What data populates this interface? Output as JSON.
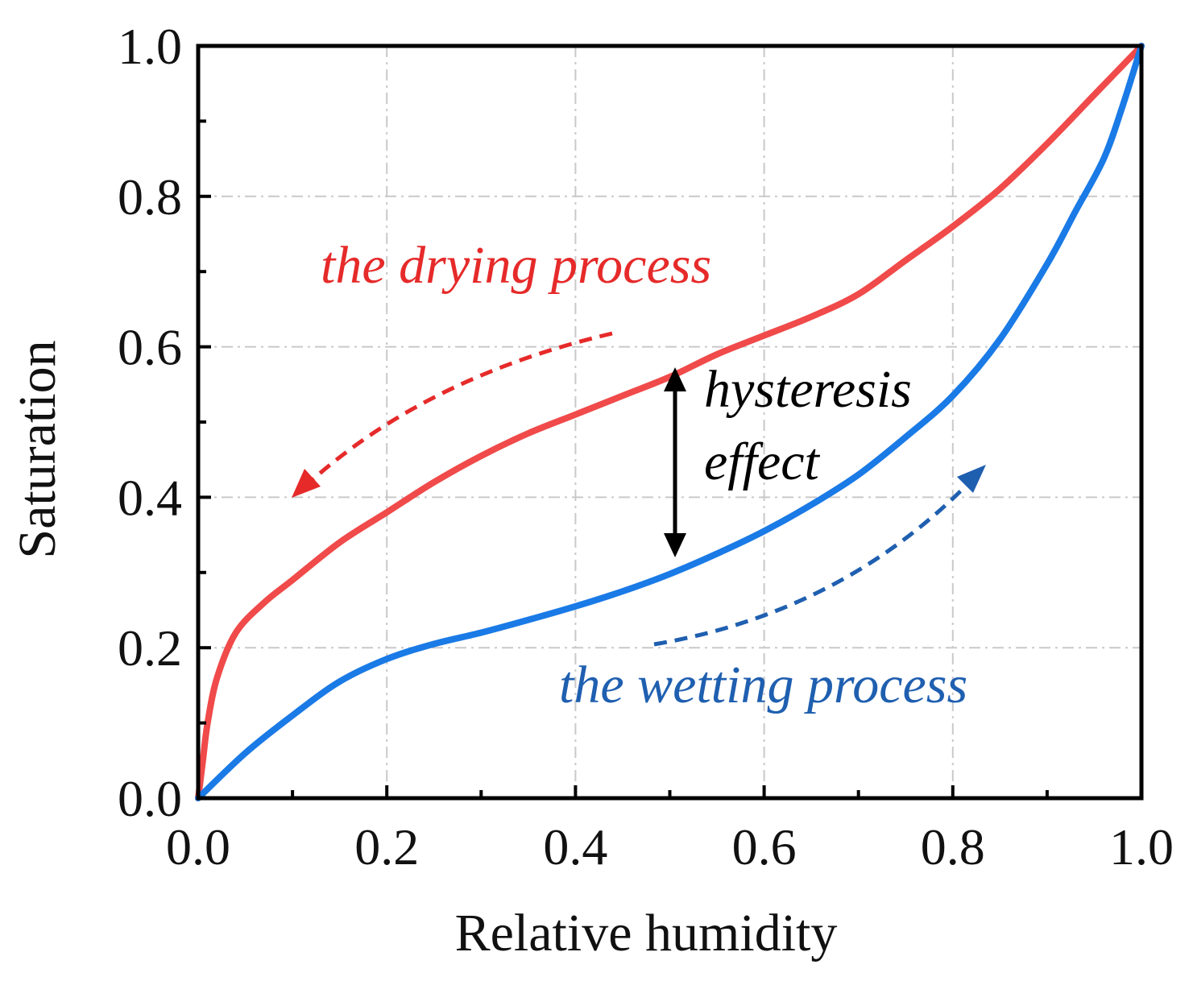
{
  "chart_data": {
    "type": "line",
    "title": "",
    "xlabel": "Relative humidity",
    "ylabel": "Saturation",
    "xlim": [
      0.0,
      1.0
    ],
    "ylim": [
      0.0,
      1.0
    ],
    "xticks": [
      "0.0",
      "0.2",
      "0.4",
      "0.6",
      "0.8",
      "1.0"
    ],
    "yticks": [
      "0.0",
      "0.2",
      "0.4",
      "0.6",
      "0.8",
      "1.0"
    ],
    "grid": true,
    "series": [
      {
        "name": "the drying process",
        "color": "#f04a4a",
        "x": [
          0.0,
          0.005,
          0.01,
          0.02,
          0.04,
          0.07,
          0.1,
          0.15,
          0.2,
          0.25,
          0.3,
          0.35,
          0.4,
          0.45,
          0.5,
          0.55,
          0.6,
          0.65,
          0.7,
          0.75,
          0.8,
          0.85,
          0.9,
          0.95,
          1.0
        ],
        "y": [
          0.0,
          0.05,
          0.1,
          0.16,
          0.22,
          0.26,
          0.29,
          0.34,
          0.38,
          0.42,
          0.455,
          0.485,
          0.51,
          0.535,
          0.56,
          0.59,
          0.615,
          0.64,
          0.67,
          0.715,
          0.76,
          0.81,
          0.87,
          0.935,
          1.0
        ]
      },
      {
        "name": "the wetting process",
        "color": "#1a7ae6",
        "x": [
          0.0,
          0.05,
          0.1,
          0.15,
          0.2,
          0.25,
          0.3,
          0.35,
          0.4,
          0.45,
          0.5,
          0.55,
          0.6,
          0.65,
          0.7,
          0.75,
          0.8,
          0.85,
          0.9,
          0.93,
          0.96,
          0.98,
          1.0
        ],
        "y": [
          0.0,
          0.06,
          0.11,
          0.155,
          0.185,
          0.205,
          0.22,
          0.237,
          0.255,
          0.275,
          0.298,
          0.325,
          0.355,
          0.39,
          0.43,
          0.48,
          0.535,
          0.61,
          0.71,
          0.78,
          0.85,
          0.92,
          1.0
        ]
      }
    ],
    "annotations": {
      "drying": "the drying process",
      "wetting": "the wetting process",
      "hysteresis_line1": "hysteresis",
      "hysteresis_line2": "effect"
    }
  }
}
